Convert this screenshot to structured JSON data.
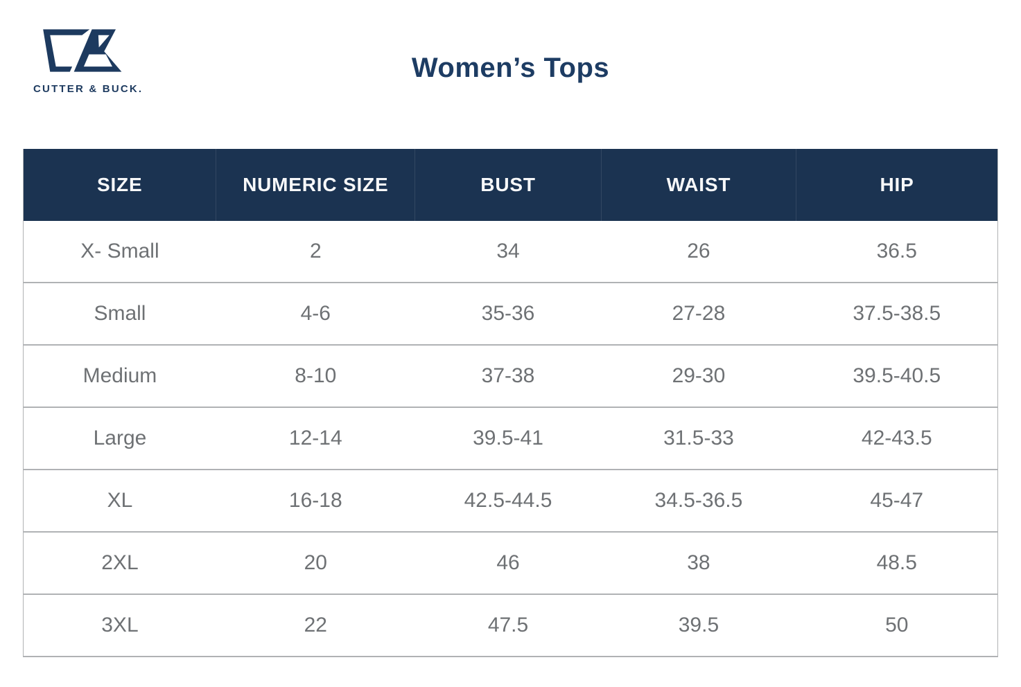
{
  "logo": {
    "wordmark": "CUTTER & BUCK.",
    "mark": "cb-monogram",
    "color": "#1d3a5f"
  },
  "title": "Women’s Tops",
  "chart_data": {
    "type": "table",
    "title": "Women’s Tops",
    "columns": [
      "SIZE",
      "NUMERIC SIZE",
      "BUST",
      "WAIST",
      "HIP"
    ],
    "rows": [
      [
        "X- Small",
        "2",
        "34",
        "26",
        "36.5"
      ],
      [
        "Small",
        "4-6",
        "35-36",
        "27-28",
        "37.5-38.5"
      ],
      [
        "Medium",
        "8-10",
        "37-38",
        "29-30",
        "39.5-40.5"
      ],
      [
        "Large",
        "12-14",
        "39.5-41",
        "31.5-33",
        "42-43.5"
      ],
      [
        "XL",
        "16-18",
        "42.5-44.5",
        "34.5-36.5",
        "45-47"
      ],
      [
        "2XL",
        "20",
        "46",
        "38",
        "48.5"
      ],
      [
        "3XL",
        "22",
        "47.5",
        "39.5",
        "50"
      ]
    ]
  },
  "colors": {
    "header_bg": "#1b3351",
    "header_text": "#f7f8f9",
    "title_text": "#1d3c63",
    "cell_text": "#6e7174",
    "row_border": "#b0b2b4",
    "logo_navy": "#1d3a5f"
  }
}
